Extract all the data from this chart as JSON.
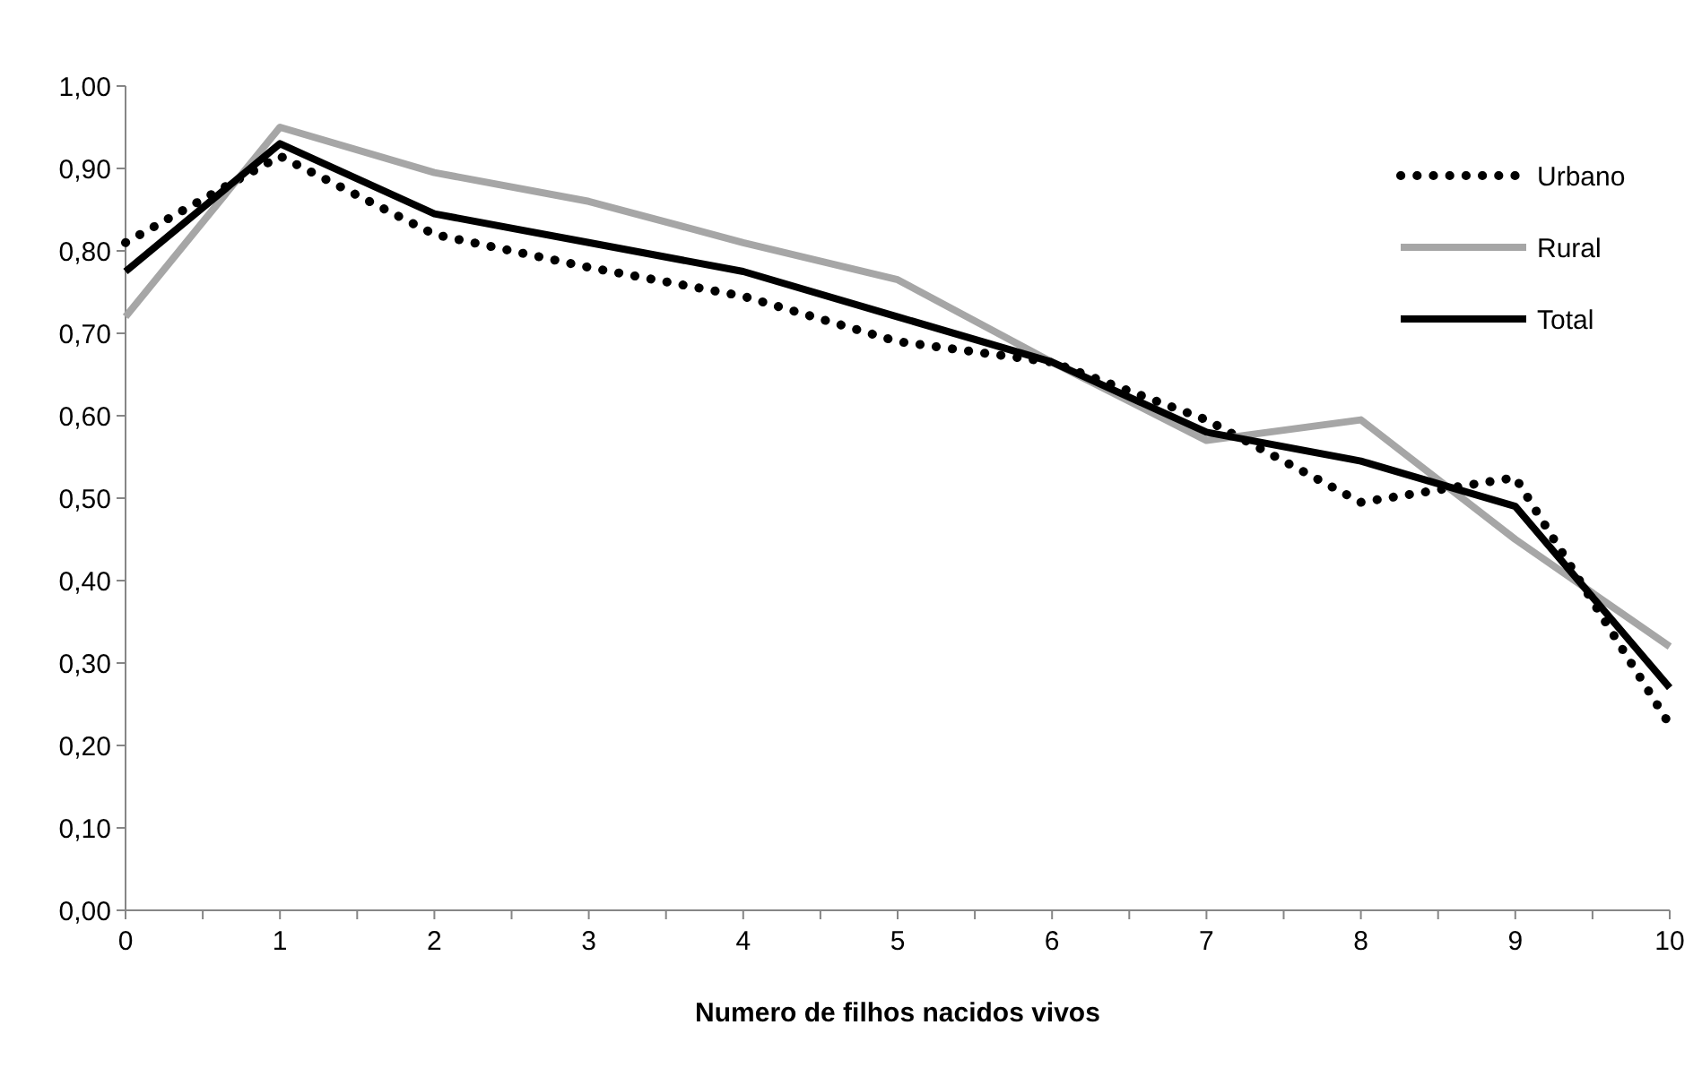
{
  "chart_data": {
    "type": "line",
    "xlabel": "Numero de filhos nacidos vivos",
    "x": [
      0,
      1,
      2,
      3,
      4,
      5,
      6,
      7,
      8,
      9,
      10
    ],
    "xlim": [
      0,
      10
    ],
    "xticks": [
      0,
      {
        "value": 0.5,
        "label": null
      },
      1,
      {
        "value": 1.5,
        "label": null
      },
      2,
      {
        "value": 2.5,
        "label": null
      },
      3,
      {
        "value": 3.5,
        "label": null
      },
      4,
      {
        "value": 4.5,
        "label": null
      },
      5,
      {
        "value": 5.5,
        "label": null
      },
      6,
      {
        "value": 6.5,
        "label": null
      },
      7,
      {
        "value": 7.5,
        "label": null
      },
      8,
      {
        "value": 8.5,
        "label": null
      },
      9,
      {
        "value": 9.5,
        "label": null
      },
      10
    ],
    "ylim": [
      0,
      1
    ],
    "yticks": [
      {
        "value": 0,
        "label": "0,00"
      },
      {
        "value": 0.1,
        "label": "0,10"
      },
      {
        "value": 0.2,
        "label": "0,20"
      },
      {
        "value": 0.3,
        "label": "0,30"
      },
      {
        "value": 0.4,
        "label": "0,40"
      },
      {
        "value": 0.5,
        "label": "0,50"
      },
      {
        "value": 0.6,
        "label": "0,60"
      },
      {
        "value": 0.7,
        "label": "0,70"
      },
      {
        "value": 0.8,
        "label": "0,80"
      },
      {
        "value": 0.9,
        "label": "0,90"
      },
      {
        "value": 1,
        "label": "1,00"
      }
    ],
    "grid": false,
    "legend": "top right",
    "marker": "none",
    "series": [
      {
        "name": "Urbano",
        "color": "#000000",
        "line_style": "dotted",
        "values": [
          0.81,
          0.915,
          0.82,
          0.78,
          0.745,
          0.69,
          0.665,
          0.595,
          0.495,
          0.525,
          0.225
        ]
      },
      {
        "name": "Rural",
        "color": "#a6a6a6",
        "line_style": "solid",
        "values": [
          0.72,
          0.95,
          0.895,
          0.86,
          0.81,
          0.765,
          0.665,
          0.57,
          0.595,
          0.45,
          0.32
        ]
      },
      {
        "name": "Total",
        "color": "#000000",
        "line_style": "solid",
        "values": [
          0.775,
          0.93,
          0.845,
          0.81,
          0.775,
          0.72,
          0.665,
          0.58,
          0.545,
          0.49,
          0.27
        ]
      }
    ]
  }
}
